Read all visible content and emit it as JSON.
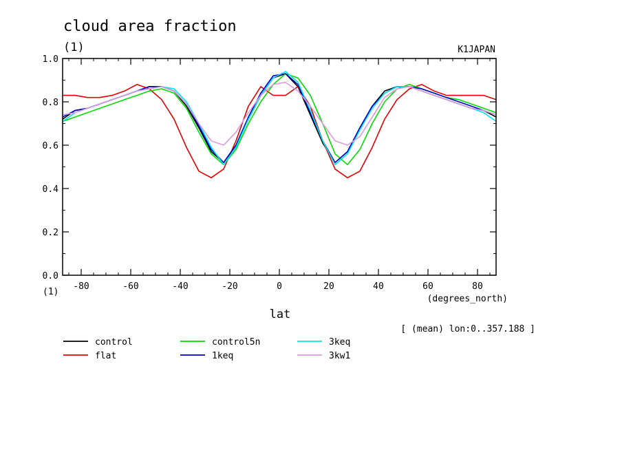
{
  "chart_data": {
    "type": "line",
    "title": "cloud area fraction",
    "units": "(1)",
    "ylabel_units": "(1)",
    "xlabel": "lat",
    "xunits": "(degrees_north)",
    "source_label": "K1JAPAN",
    "note": "[ (mean) lon:0..357.188 ]",
    "xlim": [
      -87.5,
      87.5
    ],
    "ylim": [
      0.0,
      1.0
    ],
    "x_ticks": [
      "-80",
      "-60",
      "-40",
      "-20",
      "0",
      "20",
      "40",
      "60",
      "80"
    ],
    "y_ticks": [
      "0.0",
      "0.2",
      "0.4",
      "0.6",
      "0.8",
      "1.0"
    ],
    "x": [
      -87.5,
      -82.5,
      -77.5,
      -72.5,
      -67.5,
      -62.5,
      -57.5,
      -52.5,
      -47.5,
      -42.5,
      -37.5,
      -32.5,
      -27.5,
      -22.5,
      -17.5,
      -12.5,
      -7.5,
      -2.5,
      2.5,
      7.5,
      12.5,
      17.5,
      22.5,
      27.5,
      32.5,
      37.5,
      42.5,
      47.5,
      52.5,
      57.5,
      62.5,
      67.5,
      72.5,
      77.5,
      82.5,
      87.5
    ],
    "series": [
      {
        "name": "control",
        "color": "#000000",
        "values": [
          0.72,
          0.76,
          0.77,
          0.79,
          0.81,
          0.83,
          0.85,
          0.87,
          0.87,
          0.85,
          0.78,
          0.68,
          0.57,
          0.52,
          0.6,
          0.72,
          0.83,
          0.91,
          0.93,
          0.87,
          0.74,
          0.61,
          0.52,
          0.57,
          0.68,
          0.78,
          0.85,
          0.87,
          0.87,
          0.85,
          0.83,
          0.81,
          0.79,
          0.77,
          0.76,
          0.73
        ]
      },
      {
        "name": "flat",
        "color": "#e00000",
        "values": [
          0.83,
          0.83,
          0.82,
          0.82,
          0.83,
          0.85,
          0.88,
          0.86,
          0.81,
          0.72,
          0.59,
          0.48,
          0.45,
          0.49,
          0.62,
          0.78,
          0.87,
          0.83,
          0.83,
          0.87,
          0.78,
          0.62,
          0.49,
          0.45,
          0.48,
          0.59,
          0.72,
          0.81,
          0.86,
          0.88,
          0.85,
          0.83,
          0.83,
          0.83,
          0.83,
          0.81
        ]
      },
      {
        "name": "control5n",
        "color": "#00dd00",
        "values": [
          0.71,
          0.73,
          0.75,
          0.77,
          0.79,
          0.81,
          0.83,
          0.85,
          0.86,
          0.84,
          0.77,
          0.66,
          0.56,
          0.51,
          0.58,
          0.7,
          0.8,
          0.88,
          0.93,
          0.91,
          0.83,
          0.7,
          0.56,
          0.51,
          0.58,
          0.7,
          0.8,
          0.86,
          0.88,
          0.86,
          0.84,
          0.82,
          0.81,
          0.79,
          0.77,
          0.75
        ]
      },
      {
        "name": "1keq",
        "color": "#0000cc",
        "values": [
          0.73,
          0.76,
          0.77,
          0.79,
          0.81,
          0.83,
          0.85,
          0.87,
          0.87,
          0.85,
          0.79,
          0.69,
          0.58,
          0.52,
          0.6,
          0.73,
          0.84,
          0.92,
          0.93,
          0.88,
          0.75,
          0.62,
          0.52,
          0.57,
          0.68,
          0.78,
          0.84,
          0.87,
          0.87,
          0.86,
          0.84,
          0.82,
          0.8,
          0.78,
          0.76,
          0.74
        ]
      },
      {
        "name": "3keq",
        "color": "#00e5ee",
        "values": [
          0.71,
          0.75,
          0.77,
          0.79,
          0.81,
          0.83,
          0.85,
          0.86,
          0.87,
          0.86,
          0.8,
          0.7,
          0.59,
          0.51,
          0.59,
          0.72,
          0.83,
          0.91,
          0.94,
          0.89,
          0.76,
          0.62,
          0.51,
          0.56,
          0.67,
          0.77,
          0.84,
          0.87,
          0.87,
          0.85,
          0.83,
          0.81,
          0.79,
          0.77,
          0.75,
          0.71
        ]
      },
      {
        "name": "3kw1",
        "color": "#dd99dd",
        "values": [
          0.74,
          0.75,
          0.77,
          0.79,
          0.81,
          0.83,
          0.85,
          0.86,
          0.87,
          0.85,
          0.79,
          0.7,
          0.62,
          0.6,
          0.66,
          0.75,
          0.83,
          0.88,
          0.89,
          0.85,
          0.78,
          0.7,
          0.62,
          0.6,
          0.64,
          0.73,
          0.82,
          0.86,
          0.87,
          0.85,
          0.83,
          0.81,
          0.79,
          0.77,
          0.76,
          0.74
        ]
      }
    ]
  }
}
